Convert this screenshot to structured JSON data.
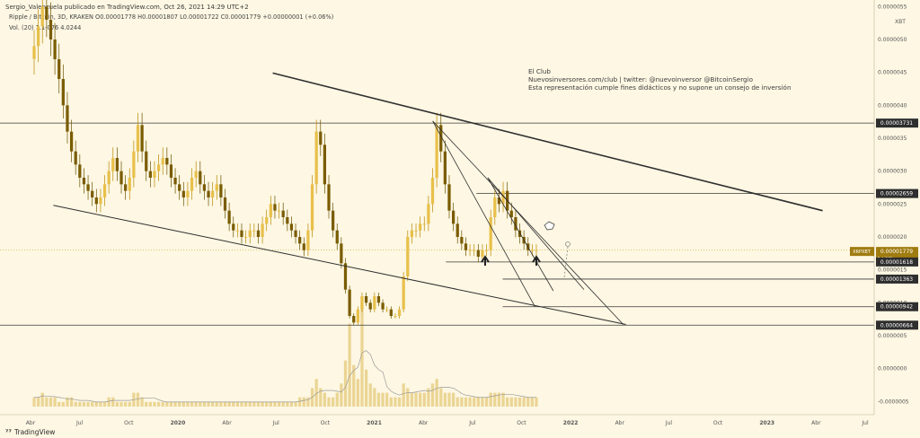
{
  "header": {
    "published": "Sergio_Valenzuela publicado en TradingView.com, Oct 26, 2021 14:29 UTC+2",
    "symbol_line": "Ripple / Bitcoin, 3D, KRAKEN  O0.00001778  H0.00001807  L0.00001722  C0.00001779  +0.00000001 (+0.06%)",
    "volume_line": "Vol. (20)  1.1-076  4.0244"
  },
  "watermark": {
    "line1": "El Club",
    "line2": "Nuevosinversores.com/club | twitter: @nuevoinversor @BitcoinSergio",
    "line3": "Esta representación cumple fines didácticos y no supone un consejo de inversión"
  },
  "footer": {
    "brand": "TradingView"
  },
  "chart_data": {
    "type": "candlestick",
    "symbol": "XRPXBT",
    "timeframe": "3D",
    "exchange": "KRAKEN",
    "currency_label": "XBT",
    "y_ticks": [
      "0.0000055",
      "0.0000050",
      "0.0000045",
      "0.0000040",
      "0.0000035",
      "0.0000030",
      "0.0000025",
      "0.0000020",
      "0.0000015",
      "0.0000010",
      "0.0000005",
      "0.0000000",
      "-0.0000005"
    ],
    "ylim": [
      -7e-07,
      5.6e-06
    ],
    "x_ticks": [
      "Abr",
      "Jul",
      "Oct",
      "2020",
      "Abr",
      "Jul",
      "Oct",
      "2021",
      "Abr",
      "Jul",
      "Oct",
      "2022",
      "Abr",
      "Jul",
      "Oct",
      "2023",
      "Abr",
      "Jul"
    ],
    "x_ticks_bold": [
      "2020",
      "2021",
      "2022",
      "2023"
    ],
    "price_tags": [
      {
        "label": "0.00003731",
        "value": 3.73e-06
      },
      {
        "label": "0.00002659",
        "value": 2.66e-06
      },
      {
        "label": "0.00001779",
        "value": 1.78e-06,
        "symbol": "XRPXBT",
        "countdown": "1d 12h",
        "highlight": true
      },
      {
        "label": "0.00001618",
        "value": 1.62e-06
      },
      {
        "label": "0.00001363",
        "value": 1.36e-06
      },
      {
        "label": "0.00000942",
        "value": 9.4e-07
      },
      {
        "label": "0.00000664",
        "value": 6.6e-07
      }
    ],
    "horizontal_levels": [
      {
        "value": 3.73e-06,
        "from": 0,
        "to": 1
      },
      {
        "value": 2.66e-06,
        "from": 0.545,
        "to": 1
      },
      {
        "value": 1.62e-06,
        "from": 0.51,
        "to": 1
      },
      {
        "value": 1.36e-06,
        "from": 0.575,
        "to": 1
      },
      {
        "value": 9.4e-07,
        "from": 0.575,
        "to": 1
      },
      {
        "value": 6.6e-07,
        "from": 0,
        "to": 1
      }
    ],
    "trendlines": [
      {
        "from": [
          0.312,
          4.49e-06
        ],
        "to": [
          0.941,
          2.4e-06
        ],
        "width": 1.6
      },
      {
        "from": [
          0.061,
          2.48e-06
        ],
        "to": [
          0.716,
          6.7e-07
        ],
        "width": 1
      },
      {
        "from": [
          0.495,
          3.76e-06
        ],
        "to": [
          0.713,
          6.7e-07
        ],
        "width": 0.8
      },
      {
        "from": [
          0.495,
          3.76e-06
        ],
        "to": [
          0.612,
          9.4e-07
        ],
        "width": 0.8
      },
      {
        "from": [
          0.558,
          2.9e-06
        ],
        "to": [
          0.633,
          1.18e-06
        ],
        "width": 0.8
      },
      {
        "from": [
          0.558,
          2.9e-06
        ],
        "to": [
          0.668,
          1.2e-06
        ],
        "width": 0.8
      }
    ],
    "close": [
      4.9e-06,
      5.2e-06,
      5.5e-06,
      5.3e-06,
      5e-06,
      4.7e-06,
      4.4e-06,
      4e-06,
      3.6e-06,
      3.3e-06,
      3.1e-06,
      2.9e-06,
      2.8e-06,
      2.7e-06,
      2.6e-06,
      2.5e-06,
      2.6e-06,
      2.8e-06,
      3e-06,
      3.2e-06,
      3e-06,
      2.8e-06,
      2.7e-06,
      2.9e-06,
      3.3e-06,
      3.7e-06,
      3.3e-06,
      3e-06,
      2.9e-06,
      3e-06,
      3.1e-06,
      3.2e-06,
      3.1e-06,
      2.9e-06,
      2.8e-06,
      2.7e-06,
      2.6e-06,
      2.7e-06,
      2.9e-06,
      3e-06,
      2.8e-06,
      2.7e-06,
      2.6e-06,
      2.7e-06,
      2.8e-06,
      2.6e-06,
      2.4e-06,
      2.2e-06,
      2.1e-06,
      2.1e-06,
      2e-06,
      2e-06,
      2.1e-06,
      2.1e-06,
      2e-06,
      2.2e-06,
      2.3e-06,
      2.5e-06,
      2.4e-06,
      2.4e-06,
      2.3e-06,
      2.2e-06,
      2.1e-06,
      2e-06,
      1.9e-06,
      1.8e-06,
      2.1e-06,
      2.8e-06,
      3.6e-06,
      3.4e-06,
      2.8e-06,
      2.4e-06,
      2.1e-06,
      1.9e-06,
      1.6e-06,
      1.2e-06,
      8e-07,
      7e-07,
      9e-07,
      1.1e-06,
      1e-06,
      9e-07,
      1.1e-06,
      1e-06,
      9e-07,
      9e-07,
      8e-07,
      8e-07,
      9e-07,
      1.4e-06,
      2e-06,
      2.1e-06,
      2.1e-06,
      2.2e-06,
      2.2e-06,
      2.5e-06,
      2.9e-06,
      3.7e-06,
      3.3e-06,
      2.8e-06,
      2.4e-06,
      2.2e-06,
      2e-06,
      1.9e-06,
      1.8e-06,
      1.8e-06,
      1.8e-06,
      1.7e-06,
      1.8e-06,
      1.8e-06,
      2.3e-06,
      2.6e-06,
      2.5e-06,
      2.7e-06,
      2.4e-06,
      2.3e-06,
      2.1e-06,
      2e-06,
      1.9e-06,
      1.8e-06,
      1.8e-06,
      1.8e-06
    ],
    "volume": [
      2,
      2,
      3,
      2,
      2,
      2,
      1,
      1,
      2,
      2,
      1,
      1,
      1,
      1,
      1,
      1,
      1,
      1,
      2,
      2,
      1,
      1,
      1,
      1,
      3,
      3,
      2,
      1,
      1,
      1,
      1,
      1,
      1,
      1,
      1,
      1,
      1,
      1,
      1,
      1,
      1,
      1,
      1,
      1,
      1,
      1,
      1,
      1,
      1,
      1,
      1,
      1,
      1,
      1,
      1,
      1,
      1,
      1,
      1,
      1,
      1,
      1,
      1,
      1,
      2,
      2,
      2,
      4,
      6,
      4,
      3,
      2,
      2,
      3,
      5,
      10,
      18,
      9,
      6,
      22,
      8,
      5,
      4,
      3,
      3,
      3,
      2,
      2,
      2,
      5,
      4,
      3,
      3,
      3,
      3,
      4,
      5,
      6,
      4,
      3,
      3,
      3,
      2,
      2,
      2,
      2,
      2,
      2,
      2,
      2,
      3,
      3,
      3,
      3,
      2,
      2,
      2,
      2,
      2,
      2,
      2,
      2
    ]
  }
}
